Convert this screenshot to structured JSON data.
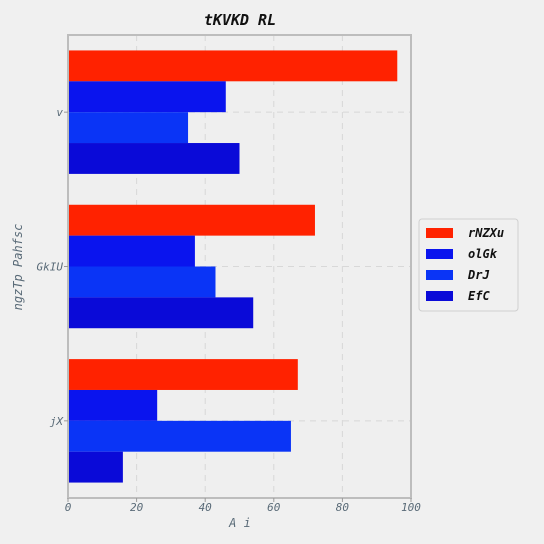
{
  "chart_data": {
    "type": "bar",
    "orientation": "horizontal",
    "title": "tKVKD RL",
    "xlabel": "A i",
    "ylabel": "ngzTp Pahfsc",
    "categories": [
      "v",
      "GkIU",
      "jX"
    ],
    "series": [
      {
        "name": "rNZXu",
        "color": "#ff2200",
        "values": [
          96,
          72,
          67
        ]
      },
      {
        "name": "olGk",
        "color": "#0a14ee",
        "values": [
          46,
          37,
          26
        ]
      },
      {
        "name": "DrJ",
        "color": "#0a34f6",
        "values": [
          35,
          43,
          65
        ]
      },
      {
        "name": "EfC",
        "color": "#0a0ad8",
        "values": [
          50,
          54,
          16
        ]
      }
    ],
    "xlim": [
      0,
      100
    ],
    "xticks": [
      "0",
      "20",
      "40",
      "60",
      "80",
      "100"
    ],
    "grid": true,
    "legend_position": "right"
  }
}
